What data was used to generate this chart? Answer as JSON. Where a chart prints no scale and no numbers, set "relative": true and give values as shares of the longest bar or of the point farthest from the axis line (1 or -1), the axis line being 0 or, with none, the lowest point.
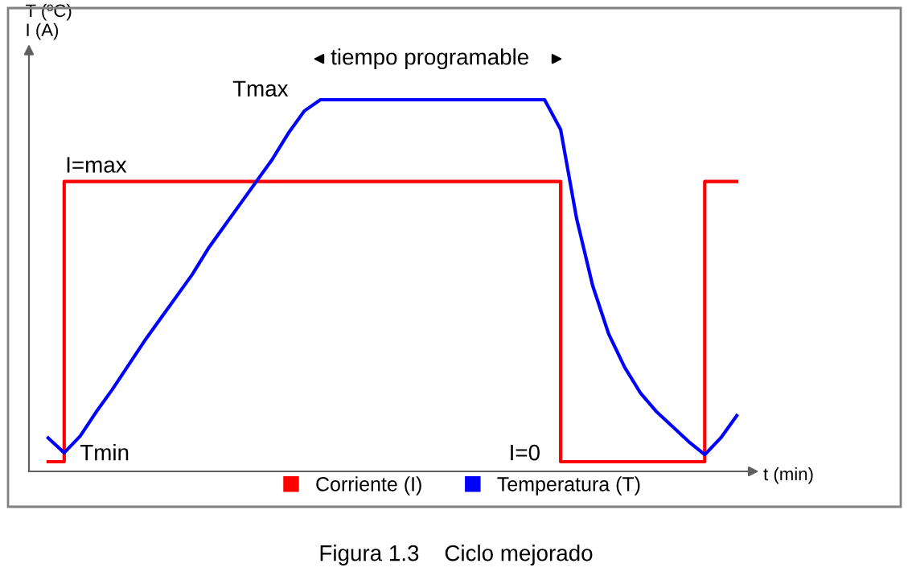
{
  "chart_data": {
    "type": "line",
    "relative": true,
    "xlabel": "t (min)",
    "ylabel": "T (ºC)\nI (A)",
    "categories": [
      null,
      null,
      null,
      null,
      null,
      null,
      null,
      null,
      null,
      null,
      null,
      null,
      null,
      null,
      null,
      null,
      null,
      null,
      null,
      null,
      null,
      null,
      null,
      null,
      null,
      null,
      null,
      null,
      null,
      null,
      null,
      null,
      null,
      null,
      null,
      null,
      null,
      null,
      null,
      null,
      null,
      null,
      null,
      null
    ],
    "series": [
      {
        "name": "Corriente (I)",
        "type": "step",
        "color": "#ff0000",
        "values": [
          0.026,
          0.78,
          0.78,
          0.78,
          0.78,
          0.78,
          0.78,
          0.78,
          0.78,
          0.78,
          0.78,
          0.78,
          0.78,
          0.78,
          0.78,
          0.78,
          0.78,
          0.78,
          0.78,
          0.78,
          0.78,
          0.78,
          0.78,
          0.78,
          0.78,
          0.78,
          0.78,
          0.78,
          0.78,
          0.78,
          0.78,
          0.78,
          0.026,
          0.026,
          0.026,
          0.026,
          0.026,
          0.026,
          0.026,
          0.026,
          0.026,
          0.78,
          0.78,
          0.78
        ]
      },
      {
        "name": "Temperatura (T)",
        "color": "#0000ff",
        "values": [
          0.09,
          0.05,
          0.095,
          0.16,
          0.22,
          0.285,
          0.35,
          0.41,
          0.47,
          0.53,
          0.6,
          0.66,
          0.72,
          0.78,
          0.84,
          0.91,
          0.97,
          1,
          1,
          1,
          1,
          1,
          1,
          1,
          1,
          1,
          1,
          1,
          1,
          1,
          1,
          1,
          0.92,
          0.68,
          0.5,
          0.37,
          0.28,
          0.21,
          0.16,
          0.12,
          0.08,
          0.045,
          0.09,
          0.15
        ]
      }
    ],
    "annotations": [
      "Tmax",
      "tiempo programable",
      "I=max",
      "Tmin",
      "I=0",
      "Figura 1.3    Ciclo mejorado"
    ],
    "legend": "bottom"
  }
}
